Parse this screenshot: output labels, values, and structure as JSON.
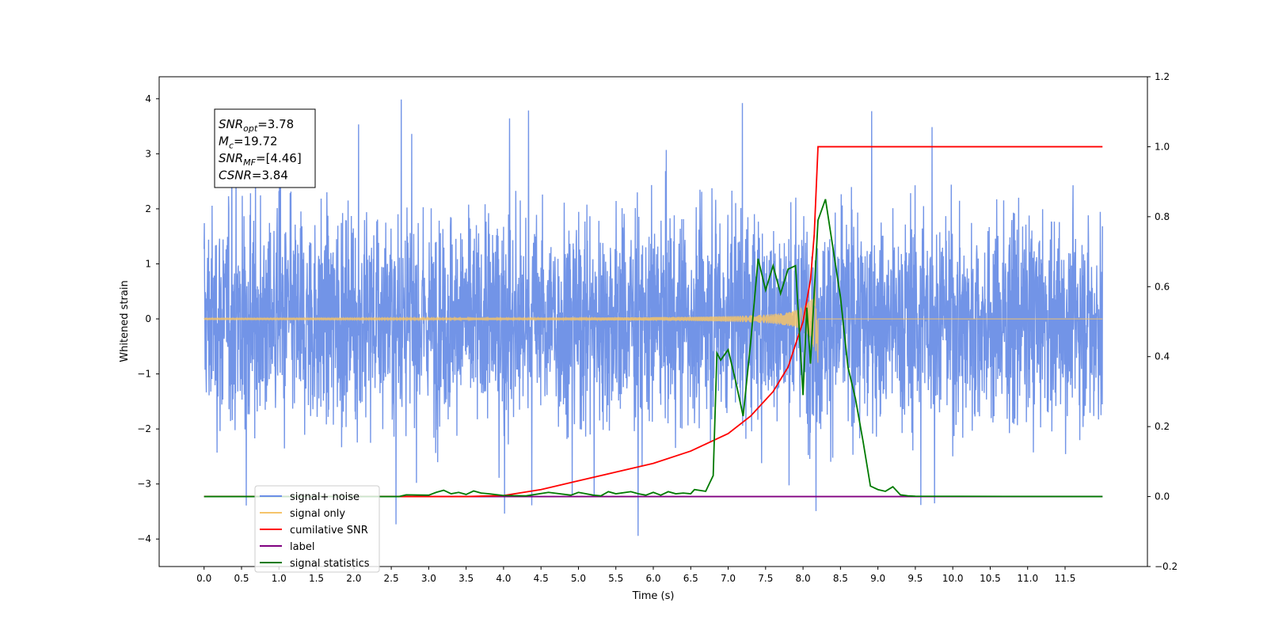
{
  "chart_data": {
    "type": "line",
    "xlabel": "Time (s)",
    "ylabel_left": "Whitened strain",
    "ylabel_right": "",
    "xlim": [
      -0.6,
      12.6
    ],
    "ylim_left": [
      -4.5,
      4.4
    ],
    "ylim_right": [
      -0.2,
      1.2
    ],
    "grid": false,
    "legend_placement": "lower-left",
    "x_ticks": [
      0.0,
      0.5,
      1.0,
      1.5,
      2.0,
      2.5,
      3.0,
      3.5,
      4.0,
      4.5,
      5.0,
      5.5,
      6.0,
      6.5,
      7.0,
      7.5,
      8.0,
      8.5,
      9.0,
      9.5,
      10.0,
      10.5,
      11.0,
      11.5
    ],
    "x_tick_labels": [
      "0.0",
      "0.5",
      "1.0",
      "1.5",
      "2.0",
      "2.5",
      "3.0",
      "3.5",
      "4.0",
      "4.5",
      "5.0",
      "5.5",
      "6.0",
      "6.5",
      "7.0",
      "7.5",
      "8.0",
      "8.5",
      "9.0",
      "9.5",
      "10.0",
      "10.5",
      "11.0",
      "11.5"
    ],
    "y_ticks_left": [
      4,
      3,
      2,
      1,
      0,
      -1,
      -2,
      -3,
      -4
    ],
    "y_tick_labels_left": [
      "4",
      "3",
      "2",
      "1",
      "0",
      "−1",
      "−2",
      "−3",
      "−4"
    ],
    "y_ticks_right": [
      1.2,
      1.0,
      0.8,
      0.6,
      0.4,
      0.2,
      0.0,
      -0.2
    ],
    "y_tick_labels_right": [
      "1.2",
      "1.0",
      "0.8",
      "0.6",
      "0.4",
      "0.2",
      "0.0",
      "−0.2"
    ],
    "annotation": {
      "lines": [
        {
          "sym": "SNR",
          "sub": "opt",
          "text": "=3.78"
        },
        {
          "sym": "M",
          "sub": "c",
          "text": "=19.72"
        },
        {
          "sym": "SNR",
          "sub": "MF",
          "text": "=[4.46]"
        },
        {
          "sym": "CSNR",
          "sub": "",
          "text": "=3.84"
        }
      ]
    },
    "legend": [
      {
        "label": "signal+ noise",
        "color": "#6a8ee6"
      },
      {
        "label": "signal only",
        "color": "#f5c46a"
      },
      {
        "label": "cumilative SNR",
        "color": "#ff0000"
      },
      {
        "label": "label",
        "color": "#800080"
      },
      {
        "label": "signal statistics",
        "color": "#007a00"
      }
    ],
    "series": [
      {
        "name": "signal+ noise",
        "axis": "left",
        "color": "#6a8ee6",
        "description_values": {
          "x_range": [
            0.0,
            12.0
          ],
          "envelope_min": -4.1,
          "envelope_max": 4.0,
          "typical_abs": 2.2
        }
      },
      {
        "name": "signal only",
        "axis": "left",
        "color": "#f5c46a",
        "chirp": {
          "x_start": 0.0,
          "x_end": 8.2,
          "amp_start": 0.005,
          "amp_end": 0.7
        }
      },
      {
        "name": "cumilative SNR",
        "axis": "right",
        "color": "#ff0000",
        "x": [
          0.0,
          3.5,
          4.0,
          4.5,
          5.0,
          5.5,
          6.0,
          6.5,
          7.0,
          7.3,
          7.6,
          7.8,
          8.0,
          8.1,
          8.15,
          8.2,
          12.0
        ],
        "y": [
          0.0,
          0.0,
          0.003,
          0.02,
          0.045,
          0.07,
          0.095,
          0.13,
          0.18,
          0.23,
          0.3,
          0.37,
          0.5,
          0.62,
          0.75,
          1.0,
          1.0
        ]
      },
      {
        "name": "label",
        "axis": "right",
        "color": "#800080",
        "x": [
          0.0,
          12.0
        ],
        "y": [
          0.0,
          0.0
        ]
      },
      {
        "name": "signal statistics",
        "axis": "right",
        "color": "#007a00",
        "x": [
          0.0,
          2.6,
          2.7,
          3.0,
          3.1,
          3.2,
          3.3,
          3.4,
          3.5,
          3.6,
          3.7,
          3.8,
          4.0,
          4.3,
          4.6,
          4.9,
          5.0,
          5.1,
          5.2,
          5.3,
          5.4,
          5.5,
          5.7,
          5.8,
          5.9,
          6.0,
          6.1,
          6.2,
          6.3,
          6.4,
          6.5,
          6.55,
          6.7,
          6.8,
          6.85,
          6.9,
          7.0,
          7.1,
          7.2,
          7.3,
          7.4,
          7.5,
          7.6,
          7.7,
          7.8,
          7.9,
          8.0,
          8.05,
          8.1,
          8.2,
          8.3,
          8.4,
          8.5,
          8.6,
          8.7,
          8.8,
          8.9,
          9.0,
          9.1,
          9.2,
          9.3,
          9.4,
          9.5,
          12.0
        ],
        "y": [
          0.0,
          0.0,
          0.005,
          0.004,
          0.012,
          0.018,
          0.008,
          0.012,
          0.006,
          0.016,
          0.01,
          0.008,
          0.003,
          0.002,
          0.012,
          0.004,
          0.012,
          0.008,
          0.004,
          0.002,
          0.014,
          0.008,
          0.014,
          0.008,
          0.004,
          0.012,
          0.004,
          0.014,
          0.008,
          0.01,
          0.008,
          0.02,
          0.015,
          0.06,
          0.41,
          0.39,
          0.42,
          0.33,
          0.23,
          0.44,
          0.68,
          0.59,
          0.66,
          0.58,
          0.65,
          0.66,
          0.29,
          0.54,
          0.38,
          0.79,
          0.85,
          0.71,
          0.57,
          0.37,
          0.28,
          0.16,
          0.03,
          0.02,
          0.015,
          0.028,
          0.005,
          0.002,
          0.001,
          0.0
        ]
      }
    ]
  }
}
